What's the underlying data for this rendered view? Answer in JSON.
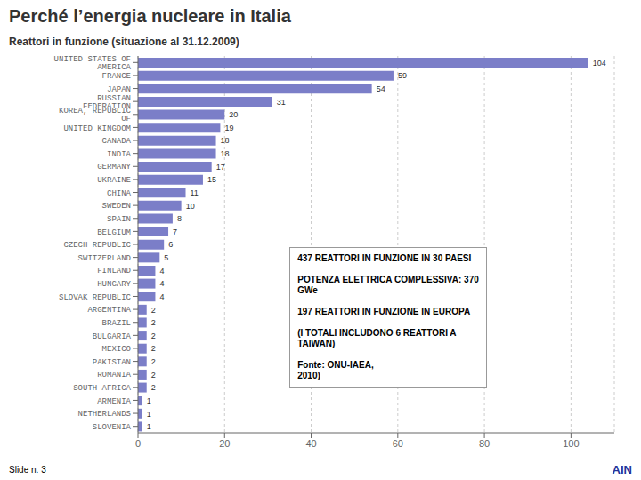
{
  "chart_data": {
    "type": "bar",
    "orientation": "horizontal",
    "title": "Perché l’energia nucleare in Italia",
    "subtitle": "Reattori in funzione (situazione al 31.12.2009)",
    "categories": [
      "UNITED STATES OF AMERICA",
      "FRANCE",
      "JAPAN",
      "RUSSIAN FEDERATION",
      "KOREA, REPUBLIC OF",
      "UNITED KINGDOM",
      "CANADA",
      "INDIA",
      "GERMANY",
      "UKRAINE",
      "CHINA",
      "SWEDEN",
      "SPAIN",
      "BELGIUM",
      "CZECH REPUBLIC",
      "SWITZERLAND",
      "FINLAND",
      "HUNGARY",
      "SLOVAK REPUBLIC",
      "ARGENTINA",
      "BRAZIL",
      "BULGARIA",
      "MEXICO",
      "PAKISTAN",
      "ROMANIA",
      "SOUTH AFRICA",
      "ARMENIA",
      "NETHERLANDS",
      "SLOVENIA"
    ],
    "values": [
      104,
      59,
      54,
      31,
      20,
      19,
      18,
      18,
      17,
      15,
      11,
      10,
      8,
      7,
      6,
      5,
      4,
      4,
      4,
      2,
      2,
      2,
      2,
      2,
      2,
      2,
      1,
      1,
      1
    ],
    "color": "#7b7ec8",
    "xlim": [
      0,
      110
    ],
    "xticks": [
      0,
      20,
      40,
      60,
      80,
      100
    ],
    "grid": true,
    "data_labels": true,
    "annotations": [
      "437 REATTORI IN FUNZIONE IN 30 PAESI\n\nPOTENZA ELETTRICA COMPLESSIVA: 370\nGWe\n\n197 REATTORI IN FUNZIONE IN EUROPA\n\n(I TOTALI INCLUDONO 6 REATTORI A\nTAIWAN)\n\nFonte: ONU-IAEA,\n2010)",
      "Slide n. 3",
      "AIN"
    ]
  }
}
